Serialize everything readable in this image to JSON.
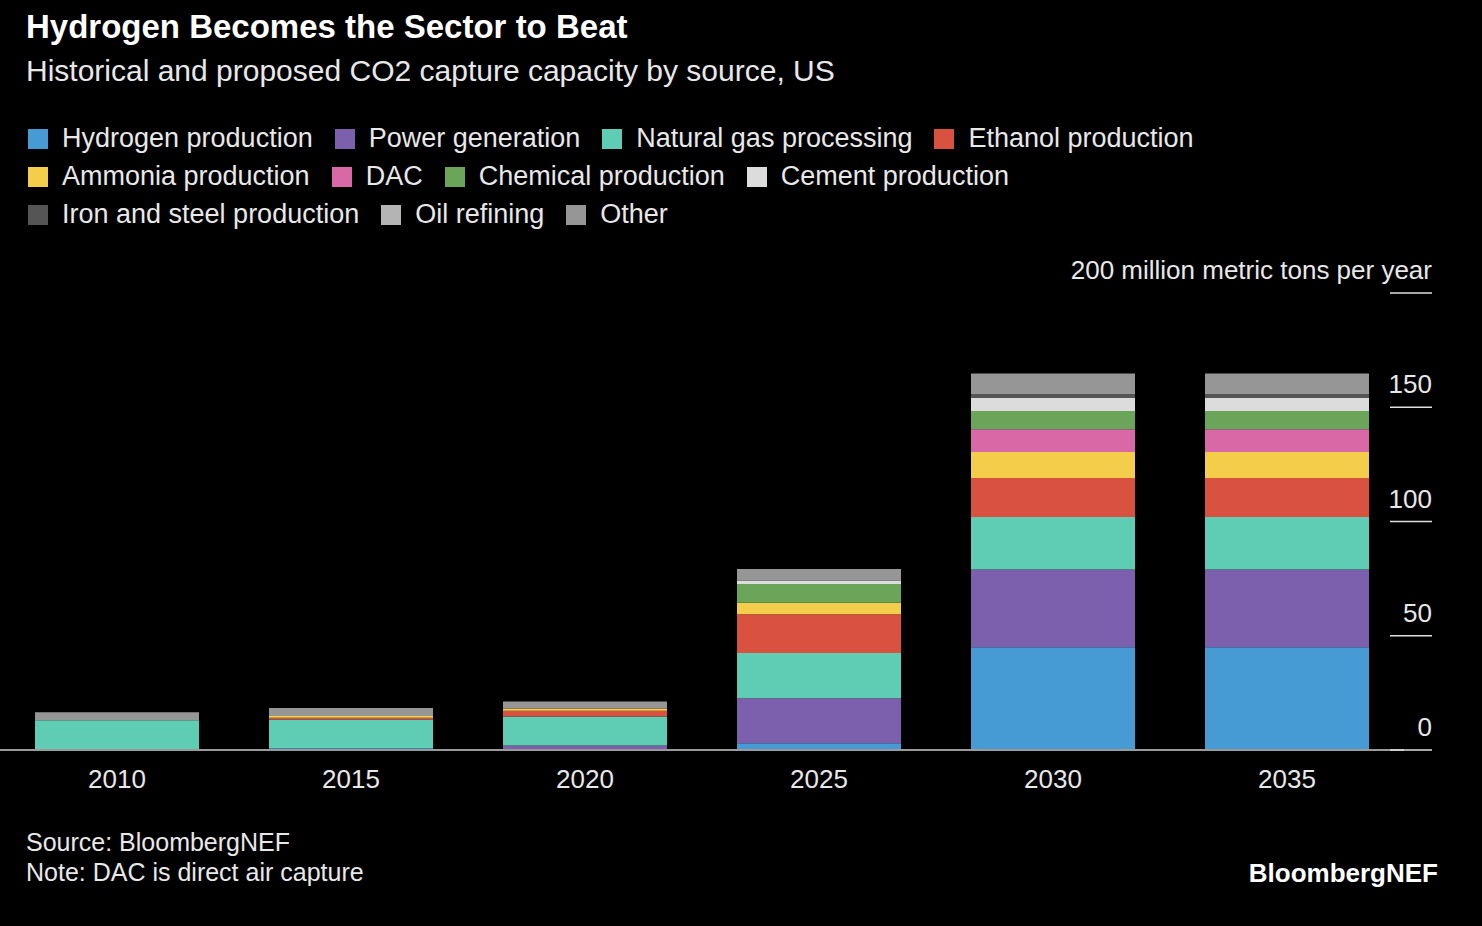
{
  "chart_data": {
    "type": "bar",
    "title": "Hydrogen Becomes the Sector to Beat",
    "subtitle": "Historical and proposed CO2 capture capacity by source, US",
    "stacked": true,
    "grid": false,
    "categories": [
      "2010",
      "2015",
      "2020",
      "2025",
      "2030",
      "2035"
    ],
    "ylim": [
      0,
      200
    ],
    "yticks": [
      0,
      50,
      100,
      150,
      {
        "value": 200,
        "label": "200 million metric tons per year"
      }
    ],
    "series": [
      {
        "name": "Hydrogen production",
        "color": "#469bd4",
        "values": [
          0,
          0.8,
          0,
          3,
          45,
          45
        ]
      },
      {
        "name": "Power generation",
        "color": "#7c60ae",
        "values": [
          0,
          0,
          2,
          19.7,
          34,
          34
        ]
      },
      {
        "name": "Natural gas processing",
        "color": "#5ecdb4",
        "values": [
          13,
          12.5,
          12.7,
          19.7,
          23,
          23
        ]
      },
      {
        "name": "Ethanol production",
        "color": "#d9513f",
        "values": [
          0,
          0.8,
          2.5,
          17,
          17,
          17
        ]
      },
      {
        "name": "Ammonia production",
        "color": "#f4ce4a",
        "values": [
          0,
          0.8,
          1,
          5,
          11.4,
          11.4
        ]
      },
      {
        "name": "DAC",
        "color": "#d868a6",
        "values": [
          0,
          0,
          0,
          0,
          10,
          10
        ]
      },
      {
        "name": "Chemical production",
        "color": "#6aa55a",
        "values": [
          0,
          0,
          0,
          8.3,
          8,
          8
        ]
      },
      {
        "name": "Cement production",
        "color": "#dcdcdc",
        "values": [
          0,
          0,
          0,
          1.5,
          5.7,
          5.7
        ]
      },
      {
        "name": "Iron and steel production",
        "color": "#555555",
        "values": [
          0,
          0,
          0,
          0,
          1.7,
          1.7
        ]
      },
      {
        "name": "Oil refining",
        "color": "#b4b4b4",
        "values": [
          0,
          0,
          0,
          0,
          0,
          0
        ]
      },
      {
        "name": "Other",
        "color": "#969696",
        "values": [
          3.5,
          3.5,
          3,
          5,
          9,
          9
        ]
      }
    ],
    "source": "Source: BloombergNEF",
    "note": "Note: DAC is direct air capture",
    "brand": "BloombergNEF"
  }
}
